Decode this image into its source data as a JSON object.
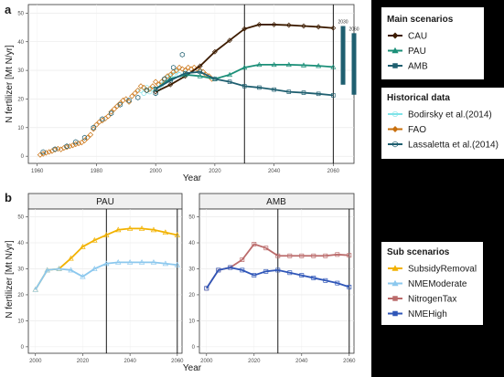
{
  "panel_a": {
    "label": "a",
    "chart_data": {
      "type": "line",
      "xlabel": "Year",
      "ylabel": "N fertilizer [Mt N/yr]",
      "xlim": [
        1957,
        2067
      ],
      "ylim": [
        -2.5,
        53
      ],
      "xticks": [
        1960,
        1980,
        2000,
        2020,
        2040,
        2060
      ],
      "yticks": [
        0,
        10,
        20,
        30,
        40,
        50
      ],
      "vlines": [
        2030,
        2060
      ],
      "scenarios": [
        {
          "name": "CAU",
          "color": "#3d1c00",
          "marker": "diamond",
          "x": [
            2000,
            2005,
            2010,
            2015,
            2020,
            2025,
            2030,
            2035,
            2040,
            2045,
            2050,
            2055,
            2060
          ],
          "y": [
            22.5,
            25,
            28,
            31.5,
            36.5,
            40.5,
            44.5,
            46,
            46,
            45.8,
            45.5,
            45.2,
            44.8
          ]
        },
        {
          "name": "PAU",
          "color": "#1b8f78",
          "marker": "triangle",
          "x": [
            2000,
            2005,
            2010,
            2015,
            2020,
            2025,
            2030,
            2035,
            2040,
            2045,
            2050,
            2055,
            2060
          ],
          "y": [
            23.5,
            27,
            28.5,
            28,
            27,
            28.5,
            31,
            32,
            32,
            32,
            31.8,
            31.6,
            31.2
          ]
        },
        {
          "name": "AMB",
          "color": "#1f5f70",
          "marker": "square",
          "x": [
            2000,
            2005,
            2010,
            2015,
            2020,
            2025,
            2030,
            2035,
            2040,
            2045,
            2050,
            2055,
            2060
          ],
          "y": [
            23.5,
            26.5,
            29,
            29.5,
            27,
            26,
            24.5,
            24,
            23.3,
            22.5,
            22.2,
            21.8,
            21.3
          ]
        }
      ],
      "historical": [
        {
          "name": "Bodirsky et al.(2014)",
          "color": "#7fe3e8",
          "marker": "circle",
          "x": [
            1995,
            1996,
            1997,
            1998,
            1999,
            2000,
            2001,
            2002,
            2003,
            2004,
            2005,
            2006,
            2007,
            2008,
            2009,
            2010
          ],
          "y": [
            23,
            22,
            24,
            22.5,
            23.5,
            22,
            23.5,
            25,
            26,
            27.5,
            28,
            28.5,
            29.5,
            28.5,
            28,
            29
          ]
        },
        {
          "name": "FAO",
          "color": "#c9700e",
          "marker": "diamond",
          "x": [
            1961,
            1962,
            1963,
            1964,
            1965,
            1966,
            1967,
            1968,
            1969,
            1970,
            1971,
            1972,
            1973,
            1974,
            1975,
            1976,
            1977,
            1978,
            1979,
            1980,
            1981,
            1982,
            1983,
            1984,
            1985,
            1986,
            1987,
            1988,
            1989,
            1990,
            1991,
            1992,
            1993,
            1994,
            1995,
            1996,
            1997,
            1998,
            1999,
            2000,
            2001,
            2002,
            2003,
            2004,
            2005,
            2006,
            2007,
            2008,
            2009,
            2010,
            2011,
            2012,
            2013,
            2014,
            2015,
            2016,
            2017,
            2018,
            2019
          ],
          "y": [
            0.5,
            0.8,
            1.2,
            1.5,
            1.8,
            2.3,
            2.6,
            2.4,
            2.9,
            3.2,
            3.5,
            3.8,
            4.2,
            4.5,
            4.8,
            5.5,
            6.5,
            7.5,
            9.5,
            11,
            12,
            12.5,
            13.2,
            14,
            15.5,
            16.5,
            17.5,
            18.5,
            19.5,
            20,
            19,
            21,
            22,
            23,
            24.5,
            24,
            23,
            23.5,
            24.5,
            26,
            25,
            26,
            27,
            28,
            28.5,
            29.5,
            30,
            31,
            30.5,
            30,
            31,
            30.5,
            31,
            30.5,
            30,
            29.5,
            28.5,
            28,
            27
          ]
        },
        {
          "name": "Lassaletta et al.(2014)",
          "color": "#1f5f70",
          "marker": "hex",
          "x": [
            1962,
            1966,
            1970,
            1973,
            1976,
            1979,
            1982,
            1985,
            1988,
            1991,
            1994,
            1997,
            2000,
            2003,
            2006,
            2009
          ],
          "y": [
            1.5,
            2.5,
            3.5,
            5,
            6.5,
            10,
            13,
            15,
            18,
            19.5,
            20.5,
            23,
            22,
            27,
            31,
            35.5
          ]
        }
      ],
      "bars": [
        {
          "label": "2030",
          "x": 2063.3,
          "ymin": 25,
          "ymax": 45.5,
          "color": "#1f5f70"
        },
        {
          "label": "2060",
          "x": 2067.0,
          "ymin": 21.5,
          "ymax": 43,
          "color": "#1f5f70"
        }
      ]
    }
  },
  "panel_b": {
    "label": "b",
    "xlabel": "Year",
    "ylabel": "N fertilizer [Mt N/yr]",
    "facets": [
      {
        "strip": "PAU",
        "chart_data": {
          "type": "line",
          "xlim": [
            1997,
            2062
          ],
          "ylim": [
            -2.5,
            53
          ],
          "xticks": [
            2000,
            2020,
            2040,
            2060
          ],
          "yticks": [
            0,
            10,
            20,
            30,
            40,
            50
          ],
          "vlines": [
            2030,
            2060
          ],
          "series": [
            {
              "name": "SubsidyRemoval",
              "color": "#f2b200",
              "marker": "triangle",
              "x": [
                2000,
                2005,
                2010,
                2015,
                2020,
                2025,
                2030,
                2035,
                2040,
                2045,
                2050,
                2055,
                2060
              ],
              "y": [
                22,
                29.5,
                30,
                34,
                38.5,
                41,
                43,
                45,
                45.5,
                45.5,
                45,
                44,
                43
              ]
            },
            {
              "name": "NMEModerate",
              "color": "#8cc8ee",
              "marker": "triangle",
              "x": [
                2000,
                2005,
                2010,
                2015,
                2020,
                2025,
                2030,
                2035,
                2040,
                2045,
                2050,
                2055,
                2060
              ],
              "y": [
                22,
                29.5,
                30,
                29.5,
                27,
                30,
                32,
                32.5,
                32.5,
                32.5,
                32.5,
                32,
                31.5
              ]
            }
          ]
        }
      },
      {
        "strip": "AMB",
        "chart_data": {
          "type": "line",
          "xlim": [
            1997,
            2062
          ],
          "ylim": [
            -2.5,
            53
          ],
          "xticks": [
            2000,
            2020,
            2040,
            2060
          ],
          "yticks": [
            0,
            10,
            20,
            30,
            40,
            50
          ],
          "vlines": [
            2030,
            2060
          ],
          "series": [
            {
              "name": "NitrogenTax",
              "color": "#bb6b6b",
              "marker": "square",
              "x": [
                2000,
                2005,
                2010,
                2015,
                2020,
                2025,
                2030,
                2035,
                2040,
                2045,
                2050,
                2055,
                2060
              ],
              "y": [
                22.5,
                29.5,
                30.5,
                33.5,
                39.5,
                38,
                35,
                35,
                35,
                35,
                35,
                35.5,
                35.2
              ]
            },
            {
              "name": "NMEHigh",
              "color": "#2f56b8",
              "marker": "square",
              "x": [
                2000,
                2005,
                2010,
                2015,
                2020,
                2025,
                2030,
                2035,
                2040,
                2045,
                2050,
                2055,
                2060
              ],
              "y": [
                22.5,
                29.5,
                30.5,
                29.5,
                27.5,
                29,
                29.5,
                28.5,
                27.5,
                26.5,
                25.5,
                24.5,
                23
              ]
            }
          ]
        }
      }
    ]
  },
  "legend_main": {
    "title": "Main scenarios",
    "items": [
      {
        "label": "CAU",
        "color": "#3d1c00",
        "marker": "diamond"
      },
      {
        "label": "PAU",
        "color": "#1b8f78",
        "marker": "triangle"
      },
      {
        "label": "AMB",
        "color": "#1f5f70",
        "marker": "square"
      }
    ]
  },
  "legend_hist": {
    "title": "Historical data",
    "items": [
      {
        "label": "Bodirsky et al.(2014)",
        "color": "#7fe3e8",
        "marker": "circle"
      },
      {
        "label": "FAO",
        "color": "#c9700e",
        "marker": "diamond"
      },
      {
        "label": "Lassaletta et al.(2014)",
        "color": "#1f5f70",
        "marker": "hex"
      }
    ]
  },
  "legend_sub": {
    "title": "Sub scenarios",
    "items": [
      {
        "label": "SubsidyRemoval",
        "color": "#f2b200",
        "marker": "triangle"
      },
      {
        "label": "NMEModerate",
        "color": "#8cc8ee",
        "marker": "triangle"
      },
      {
        "label": "NitrogenTax",
        "color": "#bb6b6b",
        "marker": "square"
      },
      {
        "label": "NMEHigh",
        "color": "#2f56b8",
        "marker": "square"
      }
    ]
  }
}
